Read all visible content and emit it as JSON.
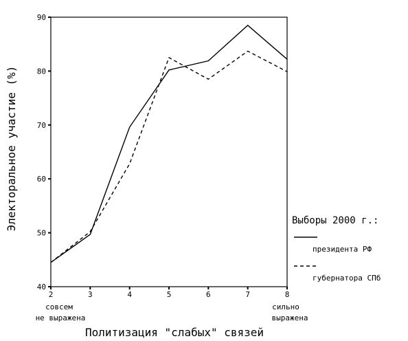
{
  "chart_data": {
    "type": "line",
    "x": [
      2,
      3,
      4,
      5,
      6,
      7,
      8
    ],
    "xlim": [
      2,
      8
    ],
    "ylim": [
      40,
      90
    ],
    "y_ticks": [
      40,
      50,
      60,
      70,
      80,
      90
    ],
    "x_ticks": [
      2,
      3,
      4,
      5,
      6,
      7,
      8
    ],
    "xlabel": "Политизация \"слабых\" связей",
    "ylabel": "Электоральное участие (%)",
    "x_end_notes": {
      "left": [
        "совсем",
        "не выражена"
      ],
      "right": [
        "сильно",
        "выражена"
      ]
    },
    "grid": false,
    "legend": {
      "title": "Выборы 2000 г.:",
      "placement": "right"
    },
    "series": [
      {
        "name": "президента РФ",
        "line_style": "solid",
        "values": [
          44.5,
          49.7,
          69.6,
          80.2,
          81.9,
          88.5,
          82.2
        ]
      },
      {
        "name": "губернатора СПб",
        "line_style": "dashed",
        "values": [
          44.5,
          50.2,
          62.8,
          82.5,
          78.5,
          83.7,
          79.9
        ]
      }
    ]
  }
}
